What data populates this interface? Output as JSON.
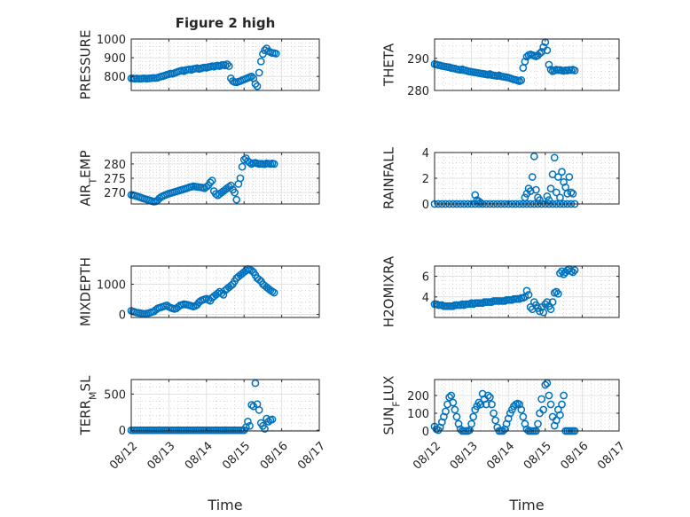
{
  "chart_data": [
    {
      "type": "scatter",
      "id": "pressure",
      "title": "Figure 2 high",
      "xlabel": "",
      "ylabel": "PRESSURE",
      "xlim": [
        0,
        5
      ],
      "ylim": [
        725,
        1000
      ],
      "yticks": [
        800,
        900,
        1000
      ],
      "x": [
        0,
        0.05,
        0.1,
        0.15,
        0.2,
        0.25,
        0.3,
        0.35,
        0.4,
        0.45,
        0.5,
        0.55,
        0.6,
        0.65,
        0.7,
        0.75,
        0.8,
        0.85,
        0.9,
        0.95,
        1,
        1.05,
        1.1,
        1.15,
        1.2,
        1.25,
        1.3,
        1.35,
        1.4,
        1.45,
        1.5,
        1.55,
        1.6,
        1.65,
        1.7,
        1.75,
        1.8,
        1.85,
        1.9,
        1.95,
        2,
        2.05,
        2.1,
        2.15,
        2.2,
        2.25,
        2.3,
        2.35,
        2.4,
        2.45,
        2.5,
        2.55,
        2.6,
        2.65,
        2.7,
        2.75,
        2.8,
        2.85,
        2.9,
        2.95,
        3.0,
        3.05,
        3.1,
        3.15,
        3.2,
        3.25,
        3.3,
        3.35,
        3.4,
        3.45,
        3.5,
        3.55,
        3.6,
        3.65,
        3.7,
        3.75,
        3.8,
        3.85
      ],
      "y": [
        790,
        789,
        788,
        789,
        788,
        787,
        789,
        790,
        788,
        789,
        790,
        791,
        792,
        791,
        793,
        797,
        800,
        802,
        806,
        809,
        812,
        815,
        814,
        818,
        822,
        826,
        829,
        832,
        828,
        834,
        836,
        838,
        835,
        840,
        842,
        844,
        840,
        843,
        846,
        848,
        846,
        850,
        852,
        855,
        852,
        856,
        858,
        855,
        860,
        862,
        858,
        865,
        855,
        790,
        775,
        770,
        768,
        772,
        775,
        780,
        784,
        788,
        792,
        796,
        800,
        790,
        760,
        748,
        820,
        880,
        920,
        940,
        950,
        935,
        930,
        925,
        925,
        922
      ]
    },
    {
      "type": "scatter",
      "id": "theta",
      "title": "",
      "xlabel": "",
      "ylabel": "THETA",
      "xlim": [
        0,
        5
      ],
      "ylim": [
        280,
        296
      ],
      "yticks": [
        280,
        290
      ],
      "x": [
        0,
        0.05,
        0.1,
        0.15,
        0.2,
        0.25,
        0.3,
        0.35,
        0.4,
        0.45,
        0.5,
        0.55,
        0.6,
        0.65,
        0.7,
        0.75,
        0.8,
        0.85,
        0.9,
        0.95,
        1,
        1.05,
        1.1,
        1.15,
        1.2,
        1.25,
        1.3,
        1.35,
        1.4,
        1.45,
        1.5,
        1.55,
        1.6,
        1.65,
        1.7,
        1.75,
        1.8,
        1.85,
        1.9,
        1.95,
        2,
        2.05,
        2.1,
        2.15,
        2.2,
        2.25,
        2.3,
        2.35,
        2.4,
        2.45,
        2.5,
        2.55,
        2.6,
        2.65,
        2.7,
        2.75,
        2.8,
        2.85,
        2.9,
        2.95,
        3.0,
        3.05,
        3.1,
        3.15,
        3.2,
        3.25,
        3.3,
        3.35,
        3.4,
        3.45,
        3.5,
        3.55,
        3.6,
        3.65,
        3.7,
        3.75,
        3.8
      ],
      "y": [
        288.2,
        288.1,
        287.9,
        287.8,
        287.6,
        287.5,
        287.4,
        287.3,
        287.2,
        287.0,
        286.9,
        286.8,
        286.6,
        286.5,
        286.4,
        286.6,
        286.3,
        286.2,
        286.0,
        285.9,
        285.8,
        285.7,
        285.6,
        285.5,
        285.4,
        285.3,
        285.2,
        285.1,
        285.0,
        284.9,
        285.1,
        284.8,
        284.7,
        284.6,
        284.5,
        284.7,
        284.4,
        284.3,
        284.2,
        284.1,
        284.0,
        283.8,
        283.6,
        283.4,
        283.3,
        283.1,
        282.9,
        283.2,
        287.0,
        289.0,
        290.5,
        291.0,
        291.2,
        291.0,
        290.8,
        290.6,
        290.9,
        291.5,
        292.0,
        293.5,
        295.0,
        292.5,
        288.0,
        286.5,
        286.0,
        286.2,
        286.5,
        286.3,
        286.4,
        286.2,
        286.1,
        286.3,
        286.2,
        286.4,
        286.3,
        286.5,
        286.2
      ]
    },
    {
      "type": "scatter",
      "id": "air_temp",
      "title": "",
      "xlabel": "",
      "ylabel": "AIR_TEMP",
      "xlim": [
        0,
        5
      ],
      "ylim": [
        266,
        284
      ],
      "yticks": [
        270,
        275,
        280
      ],
      "x": [
        0,
        0.05,
        0.1,
        0.15,
        0.2,
        0.25,
        0.3,
        0.35,
        0.4,
        0.45,
        0.5,
        0.55,
        0.6,
        0.65,
        0.7,
        0.75,
        0.8,
        0.85,
        0.9,
        0.95,
        1,
        1.05,
        1.1,
        1.15,
        1.2,
        1.25,
        1.3,
        1.35,
        1.4,
        1.45,
        1.5,
        1.55,
        1.6,
        1.65,
        1.7,
        1.75,
        1.8,
        1.85,
        1.9,
        1.95,
        2,
        2.05,
        2.1,
        2.15,
        2.2,
        2.25,
        2.3,
        2.35,
        2.4,
        2.45,
        2.5,
        2.55,
        2.6,
        2.65,
        2.7,
        2.75,
        2.8,
        2.85,
        2.9,
        2.95,
        3.0,
        3.05,
        3.1,
        3.15,
        3.2,
        3.25,
        3.3,
        3.35,
        3.4,
        3.45,
        3.5,
        3.55,
        3.6,
        3.65,
        3.7,
        3.75,
        3.8
      ],
      "y": [
        269.2,
        269.1,
        268.9,
        268.7,
        268.5,
        268.3,
        268.0,
        267.8,
        267.6,
        267.4,
        267.2,
        267.0,
        266.8,
        266.9,
        267.3,
        268.0,
        268.5,
        268.8,
        269.1,
        269.4,
        269.6,
        269.8,
        270.0,
        270.2,
        270.4,
        270.6,
        270.8,
        271.0,
        271.2,
        271.4,
        271.6,
        271.9,
        272.0,
        272.2,
        272.1,
        272.0,
        271.9,
        271.8,
        271.7,
        271.5,
        272.0,
        272.5,
        273.5,
        274.2,
        270.5,
        269.5,
        269.0,
        269.5,
        270.0,
        270.5,
        271.0,
        271.5,
        272.0,
        272.5,
        271.0,
        270.0,
        267.5,
        273.0,
        275.0,
        279.0,
        281.5,
        282.0,
        281.0,
        280.5,
        280.0,
        280.3,
        280.4,
        280.2,
        280.0,
        280.1,
        280.0,
        279.9,
        280.2,
        280.1,
        280.0,
        280.2,
        280.0
      ]
    },
    {
      "type": "scatter",
      "id": "rainfall",
      "title": "",
      "xlabel": "",
      "ylabel": "RAINFALL",
      "xlim": [
        0,
        5
      ],
      "ylim": [
        0,
        4
      ],
      "yticks": [
        0,
        2,
        4
      ],
      "x": [
        0,
        0.1,
        0.2,
        0.3,
        0.4,
        0.5,
        0.6,
        0.7,
        0.8,
        0.9,
        1.0,
        1.1,
        1.2,
        1.3,
        1.4,
        1.5,
        1.6,
        1.7,
        1.8,
        1.9,
        2.0,
        2.1,
        2.2,
        2.3,
        2.4,
        2.5,
        2.6,
        2.7,
        2.8,
        2.9,
        3.0,
        3.1,
        3.2,
        3.3,
        3.4,
        3.5,
        3.6,
        3.7,
        3.8,
        1.1,
        1.15,
        1.2,
        1.25,
        2.45,
        2.5,
        2.55,
        2.6,
        2.65,
        2.7,
        2.75,
        2.8,
        2.85,
        3.05,
        3.1,
        3.15,
        3.2,
        3.25,
        3.3,
        3.35,
        3.4,
        3.45,
        3.5,
        3.55,
        3.6,
        3.65,
        3.7,
        3.75
      ],
      "y": [
        0,
        0,
        0,
        0,
        0,
        0,
        0,
        0,
        0,
        0,
        0,
        0,
        0,
        0,
        0,
        0,
        0,
        0,
        0,
        0,
        0,
        0,
        0,
        0,
        0,
        0,
        0,
        0,
        0,
        0,
        0,
        0,
        0,
        0,
        0,
        0,
        0,
        0,
        0,
        0.7,
        0.3,
        0.2,
        0.1,
        0.5,
        0.8,
        1.2,
        1.0,
        2.1,
        3.7,
        1.1,
        0.5,
        0.3,
        0.6,
        0.3,
        1.2,
        2.3,
        3.6,
        0.9,
        2.1,
        0.5,
        2.5,
        1.7,
        1.3,
        0.8,
        2.1,
        0.9,
        0.8
      ]
    },
    {
      "type": "scatter",
      "id": "mixdepth",
      "title": "",
      "xlabel": "",
      "ylabel": "MIXDEPTH",
      "xlim": [
        0,
        5
      ],
      "ylim": [
        -100,
        1600
      ],
      "yticks": [
        0,
        1000
      ],
      "x": [
        0,
        0.05,
        0.1,
        0.15,
        0.2,
        0.25,
        0.3,
        0.35,
        0.4,
        0.45,
        0.5,
        0.55,
        0.6,
        0.65,
        0.7,
        0.75,
        0.8,
        0.85,
        0.9,
        0.95,
        1,
        1.05,
        1.1,
        1.15,
        1.2,
        1.25,
        1.3,
        1.35,
        1.4,
        1.45,
        1.5,
        1.55,
        1.6,
        1.65,
        1.7,
        1.75,
        1.8,
        1.85,
        1.9,
        1.95,
        2,
        2.05,
        2.1,
        2.15,
        2.2,
        2.25,
        2.3,
        2.35,
        2.4,
        2.45,
        2.5,
        2.55,
        2.6,
        2.65,
        2.7,
        2.75,
        2.8,
        2.85,
        2.9,
        2.95,
        3.0,
        3.05,
        3.1,
        3.15,
        3.2,
        3.25,
        3.3,
        3.35,
        3.4,
        3.45,
        3.5,
        3.55,
        3.6,
        3.65,
        3.7,
        3.75,
        3.8
      ],
      "y": [
        120,
        100,
        80,
        60,
        50,
        40,
        30,
        20,
        30,
        40,
        60,
        80,
        100,
        150,
        200,
        220,
        240,
        260,
        280,
        300,
        250,
        220,
        200,
        180,
        200,
        250,
        300,
        320,
        340,
        330,
        320,
        300,
        280,
        260,
        280,
        320,
        400,
        450,
        480,
        500,
        520,
        480,
        450,
        550,
        600,
        650,
        700,
        750,
        700,
        650,
        800,
        850,
        900,
        950,
        1000,
        1100,
        1200,
        1250,
        1300,
        1350,
        1400,
        1450,
        1500,
        1480,
        1450,
        1400,
        1300,
        1200,
        1150,
        1100,
        1000,
        950,
        900,
        850,
        800,
        760,
        720
      ]
    },
    {
      "type": "scatter",
      "id": "h2omixra",
      "title": "",
      "xlabel": "",
      "ylabel": "H2OMIXRA",
      "xlim": [
        0,
        5
      ],
      "ylim": [
        2,
        7
      ],
      "yticks": [
        4,
        6
      ],
      "x": [
        0,
        0.05,
        0.1,
        0.15,
        0.2,
        0.25,
        0.3,
        0.35,
        0.4,
        0.45,
        0.5,
        0.55,
        0.6,
        0.65,
        0.7,
        0.75,
        0.8,
        0.85,
        0.9,
        0.95,
        1,
        1.05,
        1.1,
        1.15,
        1.2,
        1.25,
        1.3,
        1.35,
        1.4,
        1.45,
        1.5,
        1.55,
        1.6,
        1.65,
        1.7,
        1.75,
        1.8,
        1.85,
        1.9,
        1.95,
        2,
        2.05,
        2.1,
        2.15,
        2.2,
        2.25,
        2.3,
        2.35,
        2.4,
        2.45,
        2.5,
        2.55,
        2.6,
        2.65,
        2.7,
        2.75,
        2.8,
        2.85,
        2.9,
        2.95,
        3.0,
        3.05,
        3.1,
        3.15,
        3.2,
        3.25,
        3.3,
        3.35,
        3.4,
        3.45,
        3.5,
        3.55,
        3.6,
        3.65,
        3.7,
        3.75,
        3.8
      ],
      "y": [
        3.3,
        3.3,
        3.2,
        3.2,
        3.2,
        3.1,
        3.1,
        3.1,
        3.1,
        3.1,
        3.1,
        3.2,
        3.2,
        3.2,
        3.2,
        3.3,
        3.2,
        3.3,
        3.3,
        3.3,
        3.4,
        3.3,
        3.4,
        3.4,
        3.4,
        3.4,
        3.4,
        3.5,
        3.5,
        3.5,
        3.5,
        3.5,
        3.6,
        3.6,
        3.6,
        3.6,
        3.6,
        3.6,
        3.6,
        3.7,
        3.7,
        3.7,
        3.7,
        3.8,
        3.8,
        3.8,
        3.8,
        3.9,
        3.9,
        4.0,
        4.6,
        4.2,
        3.0,
        2.8,
        3.5,
        3.2,
        2.9,
        2.6,
        3.0,
        2.5,
        3.3,
        3.5,
        3.1,
        2.8,
        3.5,
        4.4,
        4.5,
        4.3,
        6.3,
        6.5,
        6.2,
        6.4,
        6.6,
        6.7,
        6.5,
        6.4,
        6.6
      ]
    },
    {
      "type": "scatter",
      "id": "terr_msl",
      "title": "",
      "xlabel": "Time",
      "ylabel": "TERR_MSL",
      "xlim": [
        0,
        5
      ],
      "ylim": [
        -10,
        700
      ],
      "yticks": [
        0,
        500
      ],
      "xticklabels": [
        "08/12",
        "08/13",
        "08/14",
        "08/15",
        "08/16",
        "08/17"
      ],
      "x": [
        0,
        0.05,
        0.1,
        0.15,
        0.2,
        0.25,
        0.3,
        0.35,
        0.4,
        0.45,
        0.5,
        0.55,
        0.6,
        0.65,
        0.7,
        0.75,
        0.8,
        0.85,
        0.9,
        0.95,
        1,
        1.05,
        1.1,
        1.15,
        1.2,
        1.25,
        1.3,
        1.35,
        1.4,
        1.45,
        1.5,
        1.55,
        1.6,
        1.65,
        1.7,
        1.75,
        1.8,
        1.85,
        1.9,
        1.95,
        2,
        2.05,
        2.1,
        2.15,
        2.2,
        2.25,
        2.3,
        2.35,
        2.4,
        2.45,
        2.5,
        2.55,
        2.6,
        2.65,
        2.7,
        2.75,
        2.8,
        2.85,
        2.9,
        2.95,
        3.0,
        3.05,
        3.1,
        3.15,
        3.2,
        3.25,
        3.3,
        3.35,
        3.4,
        3.45,
        3.5,
        3.55,
        3.6,
        3.65,
        3.7,
        3.75
      ],
      "y": [
        0,
        0,
        0,
        0,
        0,
        0,
        0,
        0,
        0,
        0,
        0,
        0,
        0,
        0,
        0,
        0,
        0,
        0,
        0,
        0,
        0,
        0,
        0,
        0,
        0,
        0,
        0,
        0,
        0,
        0,
        0,
        0,
        0,
        0,
        0,
        0,
        0,
        0,
        0,
        0,
        0,
        0,
        0,
        0,
        0,
        0,
        0,
        0,
        0,
        0,
        0,
        0,
        0,
        0,
        0,
        0,
        0,
        0,
        0,
        0,
        0,
        40,
        120,
        60,
        350,
        330,
        650,
        360,
        280,
        100,
        60,
        20,
        160,
        120,
        140,
        150
      ]
    },
    {
      "type": "scatter",
      "id": "sun_flux",
      "title": "",
      "xlabel": "Time",
      "ylabel": "SUN_FLUX",
      "xlim": [
        0,
        5
      ],
      "ylim": [
        0,
        290
      ],
      "yticks": [
        0,
        100,
        200
      ],
      "xticklabels": [
        "08/12",
        "08/13",
        "08/14",
        "08/15",
        "08/16",
        "08/17"
      ],
      "x": [
        0,
        0.05,
        0.1,
        0.15,
        0.2,
        0.25,
        0.3,
        0.35,
        0.4,
        0.45,
        0.5,
        0.55,
        0.6,
        0.65,
        0.7,
        0.75,
        0.8,
        0.85,
        0.9,
        0.95,
        1,
        1.05,
        1.1,
        1.15,
        1.2,
        1.25,
        1.3,
        1.35,
        1.4,
        1.45,
        1.5,
        1.55,
        1.6,
        1.65,
        1.7,
        1.75,
        1.8,
        1.85,
        1.9,
        1.95,
        2,
        2.05,
        2.1,
        2.15,
        2.2,
        2.25,
        2.3,
        2.35,
        2.4,
        2.45,
        2.5,
        2.55,
        2.6,
        2.65,
        2.7,
        2.75,
        2.8,
        2.85,
        2.9,
        2.95,
        3.0,
        3.05,
        3.1,
        3.15,
        3.2,
        3.25,
        3.3,
        3.35,
        3.4,
        3.45,
        3.5,
        3.55,
        3.6,
        3.65,
        3.7,
        3.75,
        3.8
      ],
      "y": [
        25,
        10,
        5,
        20,
        50,
        80,
        110,
        150,
        190,
        200,
        160,
        120,
        80,
        40,
        10,
        0,
        0,
        0,
        0,
        5,
        40,
        80,
        120,
        140,
        160,
        150,
        210,
        180,
        150,
        200,
        190,
        150,
        100,
        60,
        20,
        0,
        0,
        0,
        10,
        40,
        70,
        100,
        120,
        140,
        150,
        155,
        150,
        120,
        80,
        40,
        10,
        0,
        0,
        0,
        0,
        0,
        40,
        100,
        180,
        120,
        260,
        270,
        200,
        150,
        80,
        30,
        60,
        120,
        90,
        150,
        200,
        0,
        0,
        0,
        0,
        0,
        0
      ]
    }
  ]
}
